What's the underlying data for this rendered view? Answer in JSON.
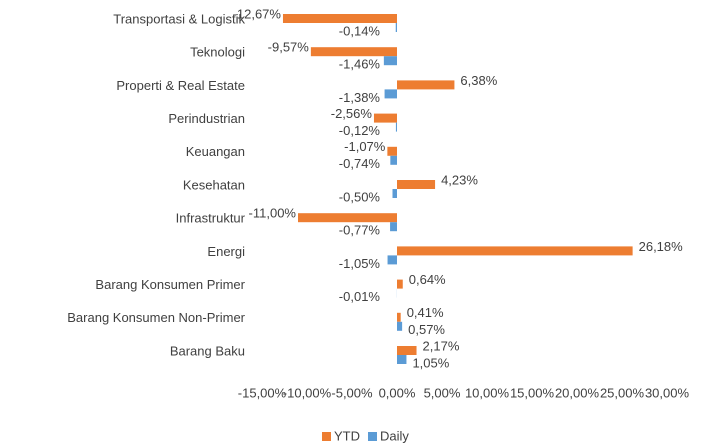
{
  "chart_data": {
    "type": "bar",
    "orientation": "horizontal",
    "categories": [
      "Transportasi & Logistik",
      "Teknologi",
      "Properti & Real Estate",
      "Perindustrian",
      "Keuangan",
      "Kesehatan",
      "Infrastruktur",
      "Energi",
      "Barang Konsumen Primer",
      "Barang Konsumen Non-Primer",
      "Barang Baku"
    ],
    "series": [
      {
        "name": "YTD",
        "color": "#ED7D31",
        "values": [
          -12.67,
          -9.57,
          6.38,
          -2.56,
          -1.07,
          4.23,
          -11.0,
          26.18,
          0.64,
          0.41,
          2.17
        ],
        "value_labels": [
          "-12,67%",
          "-9,57%",
          "6,38%",
          "-2,56%",
          "-1,07%",
          "4,23%",
          "-11,00%",
          "26,18%",
          "0,64%",
          "0,41%",
          "2,17%"
        ]
      },
      {
        "name": "Daily",
        "color": "#5B9BD5",
        "values": [
          -0.14,
          -1.46,
          -1.38,
          -0.12,
          -0.74,
          -0.5,
          -0.77,
          -1.05,
          -0.01,
          0.57,
          1.05
        ],
        "value_labels": [
          "-0,14%",
          "-1,46%",
          "-1,38%",
          "-0,12%",
          "-0,74%",
          "-0,50%",
          "-0,77%",
          "-1,05%",
          "-0,01%",
          "0,57%",
          "1,05%"
        ]
      }
    ],
    "xlim": [
      -15,
      30
    ],
    "xticks": [
      {
        "value": -15,
        "label": "-15,00%"
      },
      {
        "value": -10,
        "label": "-10,00%"
      },
      {
        "value": -5,
        "label": "-5,00%"
      },
      {
        "value": 0,
        "label": "0,00%"
      },
      {
        "value": 5,
        "label": "5,00%"
      },
      {
        "value": 10,
        "label": "10,00%"
      },
      {
        "value": 15,
        "label": "15,00%"
      },
      {
        "value": 20,
        "label": "20,00%"
      },
      {
        "value": 25,
        "label": "25,00%"
      },
      {
        "value": 30,
        "label": "30,00%"
      }
    ],
    "legend": "bottom",
    "grid": false
  }
}
